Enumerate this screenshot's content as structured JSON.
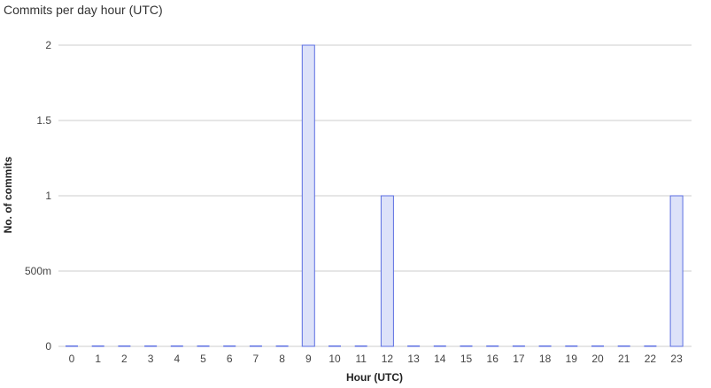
{
  "chart_data": {
    "type": "bar",
    "title": "Commits per day hour (UTC)",
    "xlabel": "Hour (UTC)",
    "ylabel": "No. of commits",
    "categories": [
      "0",
      "1",
      "2",
      "3",
      "4",
      "5",
      "6",
      "7",
      "8",
      "9",
      "10",
      "11",
      "12",
      "13",
      "14",
      "15",
      "16",
      "17",
      "18",
      "19",
      "20",
      "21",
      "22",
      "23"
    ],
    "values": [
      0,
      0,
      0,
      0,
      0,
      0,
      0,
      0,
      0,
      2,
      0,
      0,
      1,
      0,
      0,
      0,
      0,
      0,
      0,
      0,
      0,
      0,
      0,
      1
    ],
    "ylim": [
      0,
      2
    ],
    "yticks": [
      0,
      0.5,
      1,
      1.5,
      2
    ],
    "ytick_labels": [
      "0",
      "500m",
      "1",
      "1.5",
      "2"
    ],
    "grid": true,
    "colors": {
      "bar_fill": "#dde2f9",
      "bar_stroke": "#5b6ee1",
      "grid": "#cccccc"
    }
  }
}
